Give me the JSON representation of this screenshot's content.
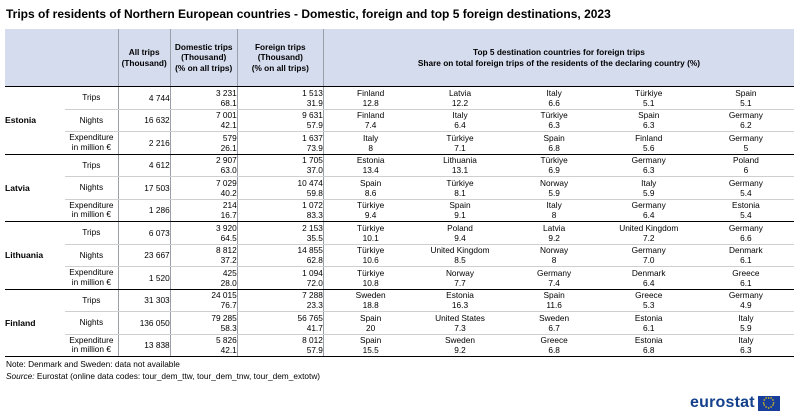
{
  "title": "Trips of residents of Northern European countries - Domestic, foreign and top 5 foreign destinations, 2023",
  "headers": {
    "all_trips": [
      "All trips",
      "(Thousand)"
    ],
    "domestic": [
      "Domestic trips",
      "(Thousand)",
      "(% on all trips)"
    ],
    "foreign": [
      "Foreign trips",
      "(Thousand)",
      "(% on all trips)"
    ],
    "top5": [
      "Top 5 destination countries for foreign trips",
      "Share on total foreign trips of the residents of the declaring country (%)"
    ]
  },
  "countries": [
    {
      "name": "Estonia",
      "rows": [
        {
          "metric": [
            "Trips"
          ],
          "all": "4 744",
          "dom": [
            "3 231",
            "68.1"
          ],
          "for": [
            "1 513",
            "31.9"
          ],
          "dest": [
            [
              "Finland",
              "12.8"
            ],
            [
              "Latvia",
              "12.2"
            ],
            [
              "Italy",
              "6.6"
            ],
            [
              "Türkiye",
              "5.1"
            ],
            [
              "Spain",
              "5.1"
            ]
          ]
        },
        {
          "metric": [
            "Nights"
          ],
          "all": "16 632",
          "dom": [
            "7 001",
            "42.1"
          ],
          "for": [
            "9 631",
            "57.9"
          ],
          "dest": [
            [
              "Finland",
              "7.4"
            ],
            [
              "Italy",
              "6.4"
            ],
            [
              "Türkiye",
              "6.3"
            ],
            [
              "Spain",
              "6.3"
            ],
            [
              "Germany",
              "6.2"
            ]
          ]
        },
        {
          "metric": [
            "Expenditure",
            "in million €"
          ],
          "all": "2 216",
          "dom": [
            "579",
            "26.1"
          ],
          "for": [
            "1 637",
            "73.9"
          ],
          "dest": [
            [
              "Italy",
              "8"
            ],
            [
              "Türkiye",
              "7.1"
            ],
            [
              "Spain",
              "6.8"
            ],
            [
              "Finland",
              "5.6"
            ],
            [
              "Germany",
              "5"
            ]
          ]
        }
      ]
    },
    {
      "name": "Latvia",
      "rows": [
        {
          "metric": [
            "Trips"
          ],
          "all": "4 612",
          "dom": [
            "2 907",
            "63.0"
          ],
          "for": [
            "1 705",
            "37.0"
          ],
          "dest": [
            [
              "Estonia",
              "13.4"
            ],
            [
              "Lithuania",
              "13.1"
            ],
            [
              "Türkiye",
              "6.9"
            ],
            [
              "Germany",
              "6.3"
            ],
            [
              "Poland",
              "6"
            ]
          ]
        },
        {
          "metric": [
            "Nights"
          ],
          "all": "17 503",
          "dom": [
            "7 029",
            "40.2"
          ],
          "for": [
            "10 474",
            "59.8"
          ],
          "dest": [
            [
              "Spain",
              "8.6"
            ],
            [
              "Türkiye",
              "8.1"
            ],
            [
              "Norway",
              "5.9"
            ],
            [
              "Italy",
              "5.9"
            ],
            [
              "Germany",
              "5.4"
            ]
          ]
        },
        {
          "metric": [
            "Expenditure",
            "in million €"
          ],
          "all": "1 286",
          "dom": [
            "214",
            "16.7"
          ],
          "for": [
            "1 072",
            "83.3"
          ],
          "dest": [
            [
              "Türkiye",
              "9.4"
            ],
            [
              "Spain",
              "9.1"
            ],
            [
              "Italy",
              "8"
            ],
            [
              "Germany",
              "6.4"
            ],
            [
              "Estonia",
              "5.4"
            ]
          ]
        }
      ]
    },
    {
      "name": "Lithuania",
      "rows": [
        {
          "metric": [
            "Trips"
          ],
          "all": "6 073",
          "dom": [
            "3 920",
            "64.5"
          ],
          "for": [
            "2 153",
            "35.5"
          ],
          "dest": [
            [
              "Türkiye",
              "10.1"
            ],
            [
              "Poland",
              "9.4"
            ],
            [
              "Latvia",
              "9.2"
            ],
            [
              "United Kingdom",
              "7.2"
            ],
            [
              "Germany",
              "6.6"
            ]
          ]
        },
        {
          "metric": [
            "Nights"
          ],
          "all": "23 667",
          "dom": [
            "8 812",
            "37.2"
          ],
          "for": [
            "14 855",
            "62.8"
          ],
          "dest": [
            [
              "Türkiye",
              "10.6"
            ],
            [
              "United Kingdom",
              "8.5"
            ],
            [
              "Norway",
              "8"
            ],
            [
              "Germany",
              "7.0"
            ],
            [
              "Denmark",
              "6.1"
            ]
          ]
        },
        {
          "metric": [
            "Expenditure",
            "in million €"
          ],
          "all": "1 520",
          "dom": [
            "425",
            "28.0"
          ],
          "for": [
            "1 094",
            "72.0"
          ],
          "dest": [
            [
              "Türkiye",
              "10.8"
            ],
            [
              "Norway",
              "7.7"
            ],
            [
              "Germany",
              "7.4"
            ],
            [
              "Denmark",
              "6.4"
            ],
            [
              "Greece",
              "6.1"
            ]
          ]
        }
      ]
    },
    {
      "name": "Finland",
      "rows": [
        {
          "metric": [
            "Trips"
          ],
          "all": "31 303",
          "dom": [
            "24 015",
            "76.7"
          ],
          "for": [
            "7 288",
            "23.3"
          ],
          "dest": [
            [
              "Sweden",
              "18.8"
            ],
            [
              "Estonia",
              "16.3"
            ],
            [
              "Spain",
              "11.6"
            ],
            [
              "Greece",
              "5.3"
            ],
            [
              "Germany",
              "4.9"
            ]
          ]
        },
        {
          "metric": [
            "Nights"
          ],
          "all": "136 050",
          "dom": [
            "79 285",
            "58.3"
          ],
          "for": [
            "56 765",
            "41.7"
          ],
          "dest": [
            [
              "Spain",
              "20"
            ],
            [
              "United States",
              "7.3"
            ],
            [
              "Sweden",
              "6.7"
            ],
            [
              "Estonia",
              "6.1"
            ],
            [
              "Italy",
              "5.9"
            ]
          ]
        },
        {
          "metric": [
            "Expenditure",
            "in million €"
          ],
          "all": "13 838",
          "dom": [
            "5 826",
            "42.1"
          ],
          "for": [
            "8 012",
            "57.9"
          ],
          "dest": [
            [
              "Spain",
              "15.5"
            ],
            [
              "Sweden",
              "9.2"
            ],
            [
              "Greece",
              "6.8"
            ],
            [
              "Estonia",
              "6.8"
            ],
            [
              "Italy",
              "6.3"
            ]
          ]
        }
      ]
    }
  ],
  "notes": {
    "note": "Note: Denmark and Sweden: data not available",
    "source_label": "Source:",
    "source_text": " Eurostat (online data codes: tour_dem_ttw, tour_dem_tnw, tour_dem_extotw)"
  },
  "logo": {
    "text": "eurostat",
    "flag_color": "#163e9a",
    "star_color": "#ffd700"
  }
}
